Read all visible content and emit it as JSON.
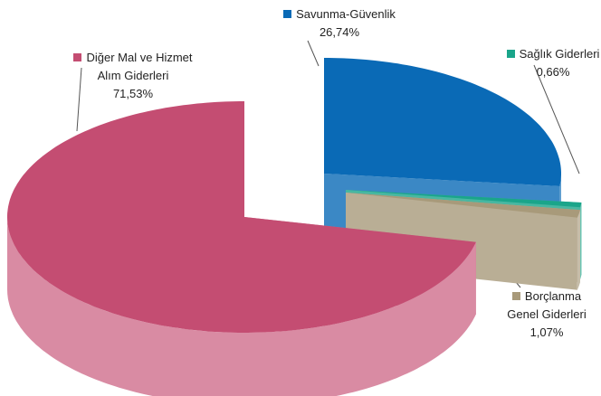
{
  "chart_data": {
    "type": "pie3d",
    "categories": [
      "Savunma-Güvenlik",
      "Sağlık Giderleri",
      "Borçlanma Genel Giderleri",
      "Diğer Mal ve Hizmet Alım Giderleri"
    ],
    "values": [
      26.74,
      0.66,
      1.07,
      71.53
    ],
    "value_labels": [
      "26,74%",
      "0,66%",
      "1,07%",
      "71,53%"
    ],
    "colors": [
      "#0a6ab6",
      "#1aa58a",
      "#a89a7a",
      "#c44d72"
    ]
  }
}
